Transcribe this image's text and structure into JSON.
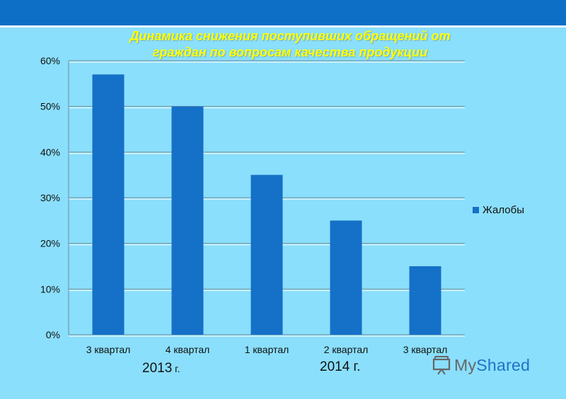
{
  "page": {
    "background": "#8ADFFC",
    "header_color": "#0E6FC7"
  },
  "chart_data": {
    "type": "bar",
    "title_lines": [
      "Динамика снижения поступивших обращений от",
      "граждан по вопросам качества продукции"
    ],
    "categories": [
      "3 квартал",
      "4 квартал",
      "1 квартал",
      "2 квартал",
      "3 квартал"
    ],
    "series": [
      {
        "name": "Жалобы",
        "values": [
          57,
          50,
          35,
          25,
          15
        ],
        "color": "#1570C8"
      }
    ],
    "ylim": [
      0,
      60
    ],
    "yticks": [
      0,
      10,
      20,
      30,
      40,
      50,
      60
    ],
    "ytick_labels": [
      "0%",
      "10%",
      "20%",
      "30%",
      "40%",
      "50%",
      "60%"
    ],
    "year_groups": [
      {
        "label": "2013",
        "suffix": " г."
      },
      {
        "label": "2014 г.",
        "suffix": ""
      }
    ],
    "grid": true,
    "legend_position": "right"
  },
  "logo": {
    "text_prefix": "My",
    "text_accent": "Shared",
    "icon": "presentation-icon"
  }
}
